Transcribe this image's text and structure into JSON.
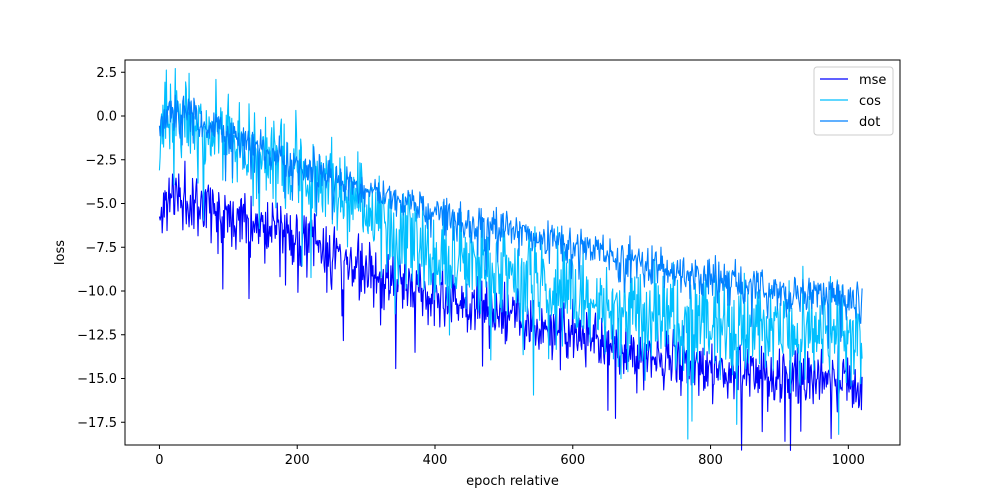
{
  "chart_data": {
    "type": "line",
    "title": "",
    "xlabel": "epoch relative",
    "ylabel": "loss",
    "xlim": [
      -50,
      1075
    ],
    "ylim": [
      -18.8,
      3.2
    ],
    "xticks": [
      0,
      200,
      400,
      600,
      800,
      1000
    ],
    "yticks": [
      2.5,
      0.0,
      -2.5,
      -5.0,
      -7.5,
      -10.0,
      -12.5,
      -15.0,
      -17.5
    ],
    "ytick_labels": [
      "2.5",
      "0.0",
      "−2.5",
      "−5.0",
      "−7.5",
      "−10.0",
      "−12.5",
      "−15.0",
      "−17.5"
    ],
    "grid": false,
    "legend_position": "top-right",
    "n_points": 1021,
    "series": [
      {
        "name": "mse",
        "color": "#0000ff",
        "trend_x": [
          0,
          15,
          100,
          200,
          300,
          400,
          500,
          600,
          700,
          800,
          900,
          1020
        ],
        "trend_y": [
          -6.0,
          -4.4,
          -5.5,
          -6.8,
          -8.8,
          -10.2,
          -11.3,
          -12.5,
          -13.6,
          -14.4,
          -14.9,
          -15.3
        ],
        "noise": 0.85,
        "seed": 11
      },
      {
        "name": "cos",
        "color": "#00bfff",
        "trend_x": [
          0,
          20,
          100,
          200,
          300,
          400,
          500,
          600,
          700,
          800,
          900,
          1020
        ],
        "trend_y": [
          -1.2,
          0.2,
          -1.3,
          -3.2,
          -5.2,
          -7.5,
          -8.8,
          -10.3,
          -11.4,
          -12.0,
          -12.3,
          -12.7
        ],
        "noise": 1.35,
        "seed": 23
      },
      {
        "name": "dot",
        "color": "#0080ff",
        "trend_x": [
          0,
          20,
          100,
          200,
          300,
          400,
          500,
          600,
          700,
          800,
          900,
          1020
        ],
        "trend_y": [
          -0.6,
          0.5,
          -1.2,
          -2.8,
          -4.3,
          -5.4,
          -6.4,
          -7.4,
          -8.4,
          -9.3,
          -10.0,
          -10.4
        ],
        "noise": 0.55,
        "seed": 37
      }
    ]
  }
}
